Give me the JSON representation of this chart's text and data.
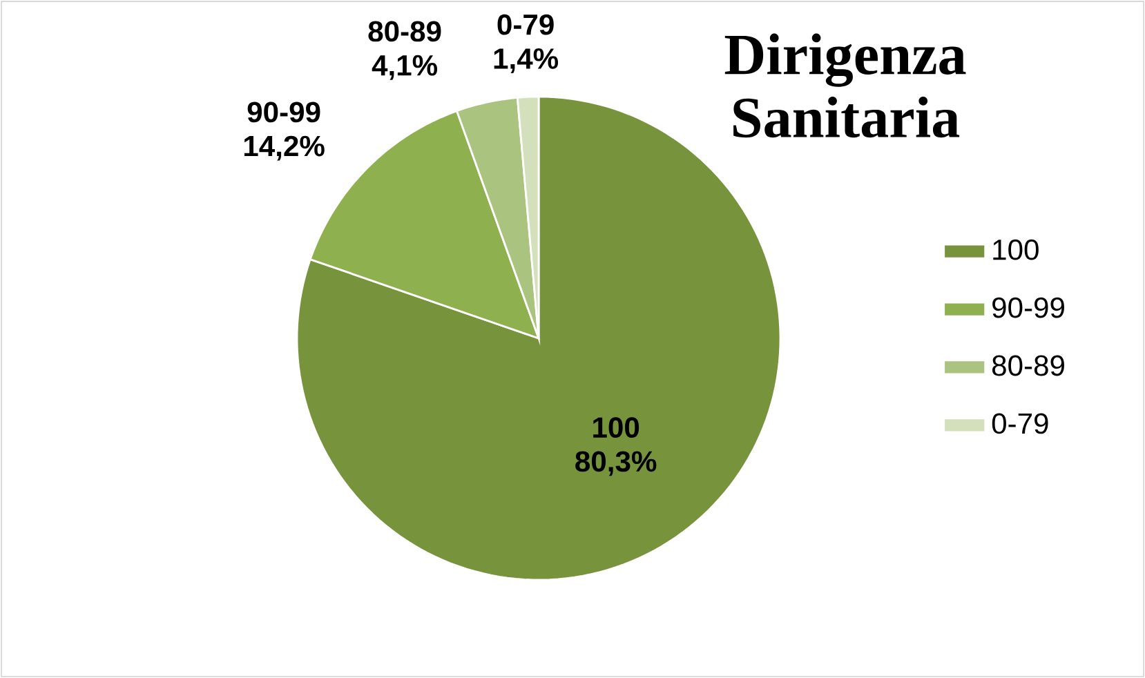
{
  "chart_data": {
    "type": "pie",
    "title": "Dirigenza Sanitaria",
    "categories": [
      "100",
      "90-99",
      "80-89",
      "0-79"
    ],
    "values": [
      80.3,
      14.2,
      4.1,
      1.4
    ],
    "value_labels": [
      "80,3%",
      "14,2%",
      "4,1%",
      "1,4%"
    ],
    "colors": [
      "#77933c",
      "#8fb04e",
      "#aac47f",
      "#d3e0bb"
    ],
    "legend": "right"
  }
}
